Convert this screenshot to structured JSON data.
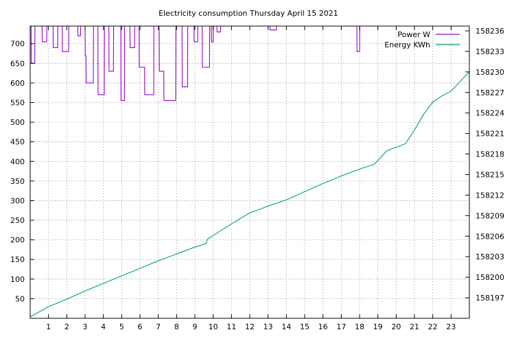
{
  "chart_data": {
    "type": "line",
    "title": "Electricity consumption Thursday April 15 2021",
    "xlabel": "",
    "ylabel": "",
    "y2label": "",
    "grid": true,
    "legend_position": "top-right",
    "x_range": [
      0,
      24
    ],
    "x_ticks": [
      1,
      2,
      3,
      4,
      5,
      6,
      7,
      8,
      9,
      10,
      11,
      12,
      13,
      14,
      15,
      16,
      17,
      18,
      19,
      20,
      21,
      22,
      23
    ],
    "y_range": [
      0,
      745
    ],
    "y_ticks": [
      50,
      100,
      150,
      200,
      250,
      300,
      350,
      400,
      450,
      500,
      550,
      600,
      650,
      700
    ],
    "y2_range": [
      158194,
      158236.7
    ],
    "y2_ticks": [
      158197,
      158200,
      158203,
      158206,
      158209,
      158212,
      158215,
      158218,
      158221,
      158224,
      158227,
      158230,
      158233,
      158236
    ],
    "series": [
      {
        "name": "Power W",
        "axis": "y",
        "color": "#9400d3",
        "x": [
          0.0,
          0.05,
          0.06,
          0.25,
          0.26,
          0.65,
          0.66,
          0.9,
          0.91,
          1.25,
          1.26,
          1.5,
          1.51,
          1.75,
          1.76,
          2.1,
          2.11,
          2.6,
          2.61,
          2.75,
          2.76,
          3.0,
          3.01,
          3.05,
          3.06,
          3.45,
          3.46,
          3.7,
          3.71,
          4.05,
          4.06,
          4.3,
          4.31,
          4.55,
          4.56,
          4.95,
          4.96,
          5.15,
          5.16,
          5.45,
          5.46,
          5.7,
          5.71,
          5.95,
          5.96,
          6.25,
          6.26,
          6.75,
          6.76,
          7.05,
          7.06,
          7.3,
          7.31,
          7.95,
          7.96,
          8.3,
          8.31,
          8.6,
          8.61,
          8.95,
          8.96,
          9.15,
          9.16,
          9.4,
          9.41,
          9.8,
          9.81,
          9.9,
          9.91,
          10.0,
          10.01,
          10.2,
          10.21,
          10.4,
          10.41,
          13.1,
          13.11,
          13.45,
          13.46,
          17.85,
          17.86,
          18.0,
          18.01,
          24.0
        ],
        "values": [
          745,
          745,
          650,
          650,
          745,
          745,
          705,
          705,
          745,
          745,
          690,
          690,
          745,
          745,
          680,
          680,
          745,
          745,
          720,
          720,
          745,
          745,
          670,
          670,
          600,
          600,
          745,
          745,
          570,
          570,
          745,
          745,
          630,
          630,
          745,
          745,
          555,
          555,
          745,
          745,
          690,
          690,
          745,
          745,
          640,
          640,
          570,
          570,
          745,
          745,
          630,
          630,
          555,
          555,
          745,
          745,
          590,
          590,
          745,
          745,
          705,
          705,
          745,
          745,
          640,
          640,
          745,
          745,
          705,
          705,
          745,
          745,
          730,
          730,
          745,
          745,
          735,
          735,
          745,
          745,
          680,
          680,
          745,
          745
        ]
      },
      {
        "name": "Energy KWh",
        "axis": "y2",
        "color": "#009e73",
        "x": [
          0,
          1,
          2,
          3,
          4,
          5,
          6,
          7,
          8,
          9,
          9.6,
          9.7,
          10,
          11,
          12,
          13,
          14,
          15,
          16,
          17,
          18,
          18.8,
          19.5,
          20.5,
          21,
          21.5,
          22,
          22.5,
          23,
          24
        ],
        "values": [
          158194.2,
          158195.7,
          158196.8,
          158198.0,
          158199.1,
          158200.2,
          158201.3,
          158202.4,
          158203.4,
          158204.4,
          158204.9,
          158205.6,
          158206.1,
          158207.8,
          158209.4,
          158210.4,
          158211.3,
          158212.5,
          158213.7,
          158214.8,
          158215.8,
          158216.5,
          158218.5,
          158219.5,
          158221.5,
          158223.8,
          158225.6,
          158226.5,
          158227.2,
          158230.0
        ]
      }
    ]
  }
}
